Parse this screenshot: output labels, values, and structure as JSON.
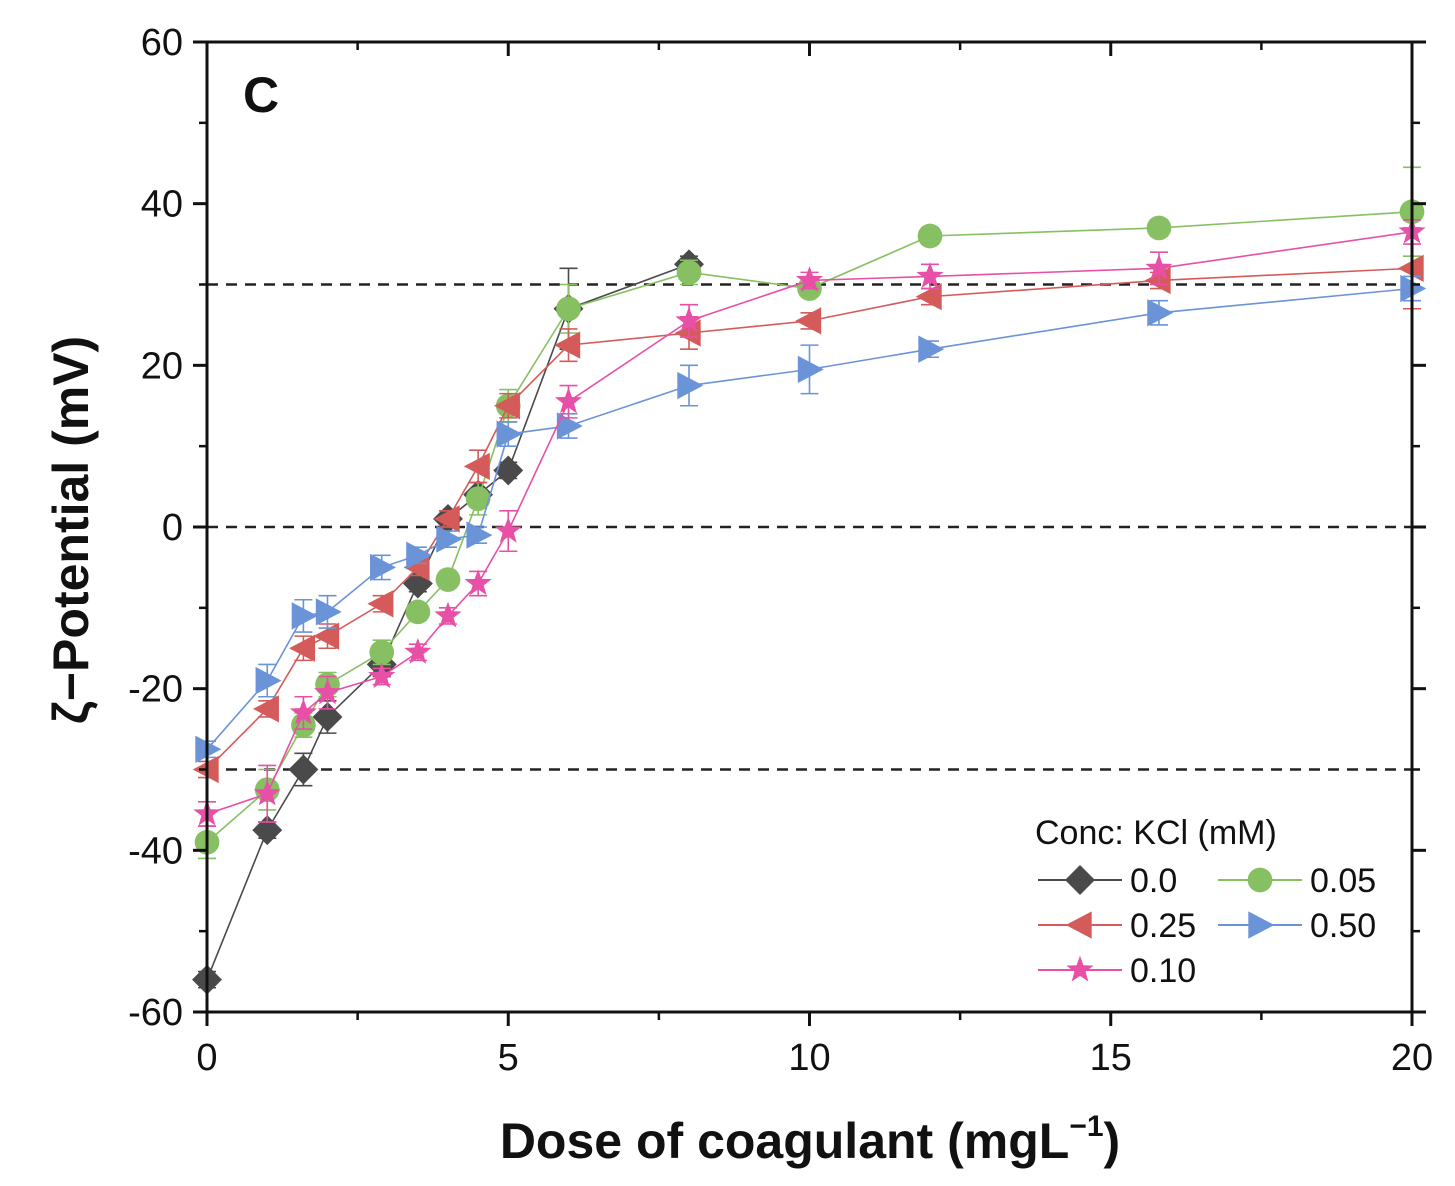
{
  "chart_data": {
    "type": "line",
    "panel_label": "C",
    "xlabel": "Dose of coagulant (mgL",
    "xlabel_sup": "−1",
    "xlabel_end": ")",
    "ylabel": "ζ−Potential (mV)",
    "xlim": [
      0,
      20
    ],
    "ylim": [
      -60,
      60
    ],
    "x_ticks": [
      0,
      5,
      10,
      15,
      20
    ],
    "x_tick_labels": [
      "0",
      "5",
      "10",
      "15",
      "20"
    ],
    "y_ticks": [
      -60,
      -40,
      -20,
      0,
      20,
      40,
      60
    ],
    "y_tick_labels": [
      "-60",
      "-40",
      "-20",
      "0",
      "20",
      "40",
      "60"
    ],
    "reference_lines": [
      30,
      0,
      -30
    ],
    "legend_title": "Conc: KCl (mM)",
    "legend_position": "bottom-right",
    "series": [
      {
        "name": "0.0",
        "color": "#4a4a4a",
        "marker": "diamond",
        "x": [
          0,
          1,
          1.6,
          2,
          2.9,
          3.5,
          4,
          4.5,
          5,
          6,
          8
        ],
        "y": [
          -56,
          -37.5,
          -30,
          -23.5,
          -17,
          -7,
          1,
          4,
          7,
          27,
          32.5
        ],
        "err": [
          1,
          1,
          2,
          2,
          1.5,
          1,
          1,
          1.5,
          1,
          5,
          1
        ]
      },
      {
        "name": "0.05",
        "color": "#86c062",
        "marker": "circle",
        "x": [
          0,
          1,
          1.6,
          2,
          2.9,
          3.5,
          4,
          4.5,
          5,
          6,
          8,
          10,
          12,
          15.8,
          20
        ],
        "y": [
          -39,
          -32.5,
          -24.5,
          -19.5,
          -15.5,
          -10.5,
          -6.5,
          3.5,
          15,
          27,
          31.5,
          29.5,
          36,
          37,
          39
        ],
        "err": [
          2,
          2.5,
          1.5,
          1.5,
          1.5,
          1,
          1,
          2,
          2,
          3,
          1.5,
          1,
          1,
          1,
          5.5
        ]
      },
      {
        "name": "0.25",
        "color": "#d55b5b",
        "marker": "triangle-left",
        "x": [
          0,
          1,
          1.6,
          2,
          2.9,
          3.5,
          4,
          4.5,
          5,
          6,
          8,
          10,
          12,
          15.8,
          20
        ],
        "y": [
          -30,
          -22.5,
          -15,
          -13.5,
          -9.5,
          -5,
          1,
          7.5,
          15,
          22.5,
          24,
          25.5,
          28.5,
          30.5,
          32
        ],
        "err": [
          1,
          1,
          1.5,
          1.5,
          1,
          1,
          1,
          2,
          1.5,
          2,
          2,
          1,
          1,
          1,
          5
        ]
      },
      {
        "name": "0.50",
        "color": "#6a93d8",
        "marker": "triangle-right",
        "x": [
          0,
          1,
          1.6,
          2,
          2.9,
          3.5,
          4,
          4.5,
          5,
          6,
          8,
          10,
          12,
          15.8,
          20
        ],
        "y": [
          -27.5,
          -19,
          -11,
          -10.5,
          -5,
          -3.5,
          -1.5,
          -1,
          11.5,
          12.5,
          17.5,
          19.5,
          22,
          26.5,
          29.5
        ],
        "err": [
          1,
          2,
          2,
          2,
          1.5,
          1,
          1,
          1,
          1.5,
          1.5,
          2.5,
          3,
          1,
          1.5,
          1.5
        ]
      },
      {
        "name": "0.10",
        "color": "#e84fa6",
        "marker": "star",
        "x": [
          0,
          1,
          1.6,
          2,
          2.9,
          3.5,
          4,
          4.5,
          5,
          6,
          8,
          10,
          12,
          15.8,
          20
        ],
        "y": [
          -35.5,
          -33,
          -23,
          -20.5,
          -18.5,
          -15.5,
          -11,
          -7,
          -0.5,
          15.5,
          25.5,
          30.5,
          31,
          32,
          36.5
        ],
        "err": [
          1.5,
          3.5,
          2,
          2,
          1,
          1,
          1,
          1.5,
          2.5,
          2,
          2,
          1,
          1.5,
          2,
          1.5
        ]
      }
    ]
  }
}
